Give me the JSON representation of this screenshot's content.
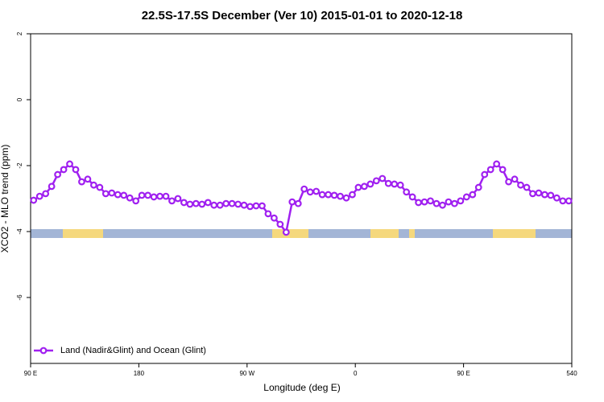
{
  "chart_data": {
    "type": "line",
    "title": "22.5S-17.5S December (Ver 10)   2015-01-01 to 2020-12-18",
    "x_label": "Longitude (deg E)",
    "y_label": "XCO2 - MLO trend (ppm)",
    "x": [
      92.5,
      97.5,
      102.5,
      107.5,
      112.5,
      117.5,
      122.5,
      127.5,
      132.5,
      137.5,
      142.5,
      147.5,
      152.5,
      157.5,
      162.5,
      167.5,
      172.5,
      177.5,
      182.5,
      187.5,
      192.5,
      197.5,
      202.5,
      207.5,
      212.5,
      217.5,
      222.5,
      227.5,
      232.5,
      237.5,
      242.5,
      247.5,
      252.5,
      257.5,
      262.5,
      267.5,
      272.5,
      277.5,
      282.5,
      287.5,
      292.5,
      297.5,
      302.5,
      307.5,
      312.5,
      317.5,
      322.5,
      327.5,
      332.5,
      337.5,
      342.5,
      347.5,
      352.5,
      357.5,
      362.5,
      367.5,
      372.5,
      377.5,
      382.5,
      387.5,
      392.5,
      397.5,
      402.5,
      407.5,
      412.5,
      417.5,
      422.5,
      427.5,
      432.5,
      437.5,
      442.5,
      447.5,
      452.5,
      457.5,
      462.5,
      467.5,
      472.5,
      477.5,
      482.5,
      487.5,
      492.5,
      497.5,
      502.5,
      507.5,
      512.5,
      517.5,
      522.5,
      527.5,
      532.5,
      537.5
    ],
    "series": [
      {
        "name": "Land (Nadir&Glint) and Ocean (Glint)",
        "color": "#a020f0",
        "values": [
          -3.05,
          -2.93,
          -2.85,
          -2.63,
          -2.27,
          -2.12,
          -1.95,
          -2.12,
          -2.49,
          -2.41,
          -2.59,
          -2.66,
          -2.85,
          -2.83,
          -2.88,
          -2.9,
          -2.98,
          -3.07,
          -2.9,
          -2.9,
          -2.95,
          -2.93,
          -2.93,
          -3.07,
          -3.0,
          -3.12,
          -3.17,
          -3.15,
          -3.17,
          -3.12,
          -3.2,
          -3.2,
          -3.15,
          -3.15,
          -3.17,
          -3.2,
          -3.24,
          -3.22,
          -3.22,
          -3.46,
          -3.59,
          -3.78,
          -4.02,
          -3.1,
          -3.15,
          -2.71,
          -2.8,
          -2.78,
          -2.88,
          -2.88,
          -2.9,
          -2.93,
          -2.98,
          -2.88,
          -2.66,
          -2.63,
          -2.56,
          -2.46,
          -2.39,
          -2.54,
          -2.56,
          -2.59,
          -2.8,
          -2.95,
          -3.12,
          -3.1,
          -3.07,
          -3.15,
          -3.2,
          -3.1,
          -3.15,
          -3.07,
          -2.95,
          -2.88,
          -2.66,
          -2.27,
          -2.12,
          -1.95,
          -2.12,
          -2.49,
          -2.41,
          -2.59,
          -2.66,
          -2.85,
          -2.83,
          -2.88,
          -2.9,
          -2.98,
          -3.07,
          -3.07
        ]
      }
    ],
    "xlim": [
      90,
      540
    ],
    "ylim": [
      -8,
      2
    ],
    "xticks": [
      {
        "value": 90,
        "label": "90 E"
      },
      180,
      {
        "value": 270,
        "label": "90 W"
      },
      {
        "value": 360,
        "label": "0"
      },
      {
        "value": 450,
        "label": "90 E"
      },
      540
    ],
    "yticks": [
      2,
      0,
      -2,
      -4,
      -6
    ],
    "legend": "bottom-left"
  }
}
